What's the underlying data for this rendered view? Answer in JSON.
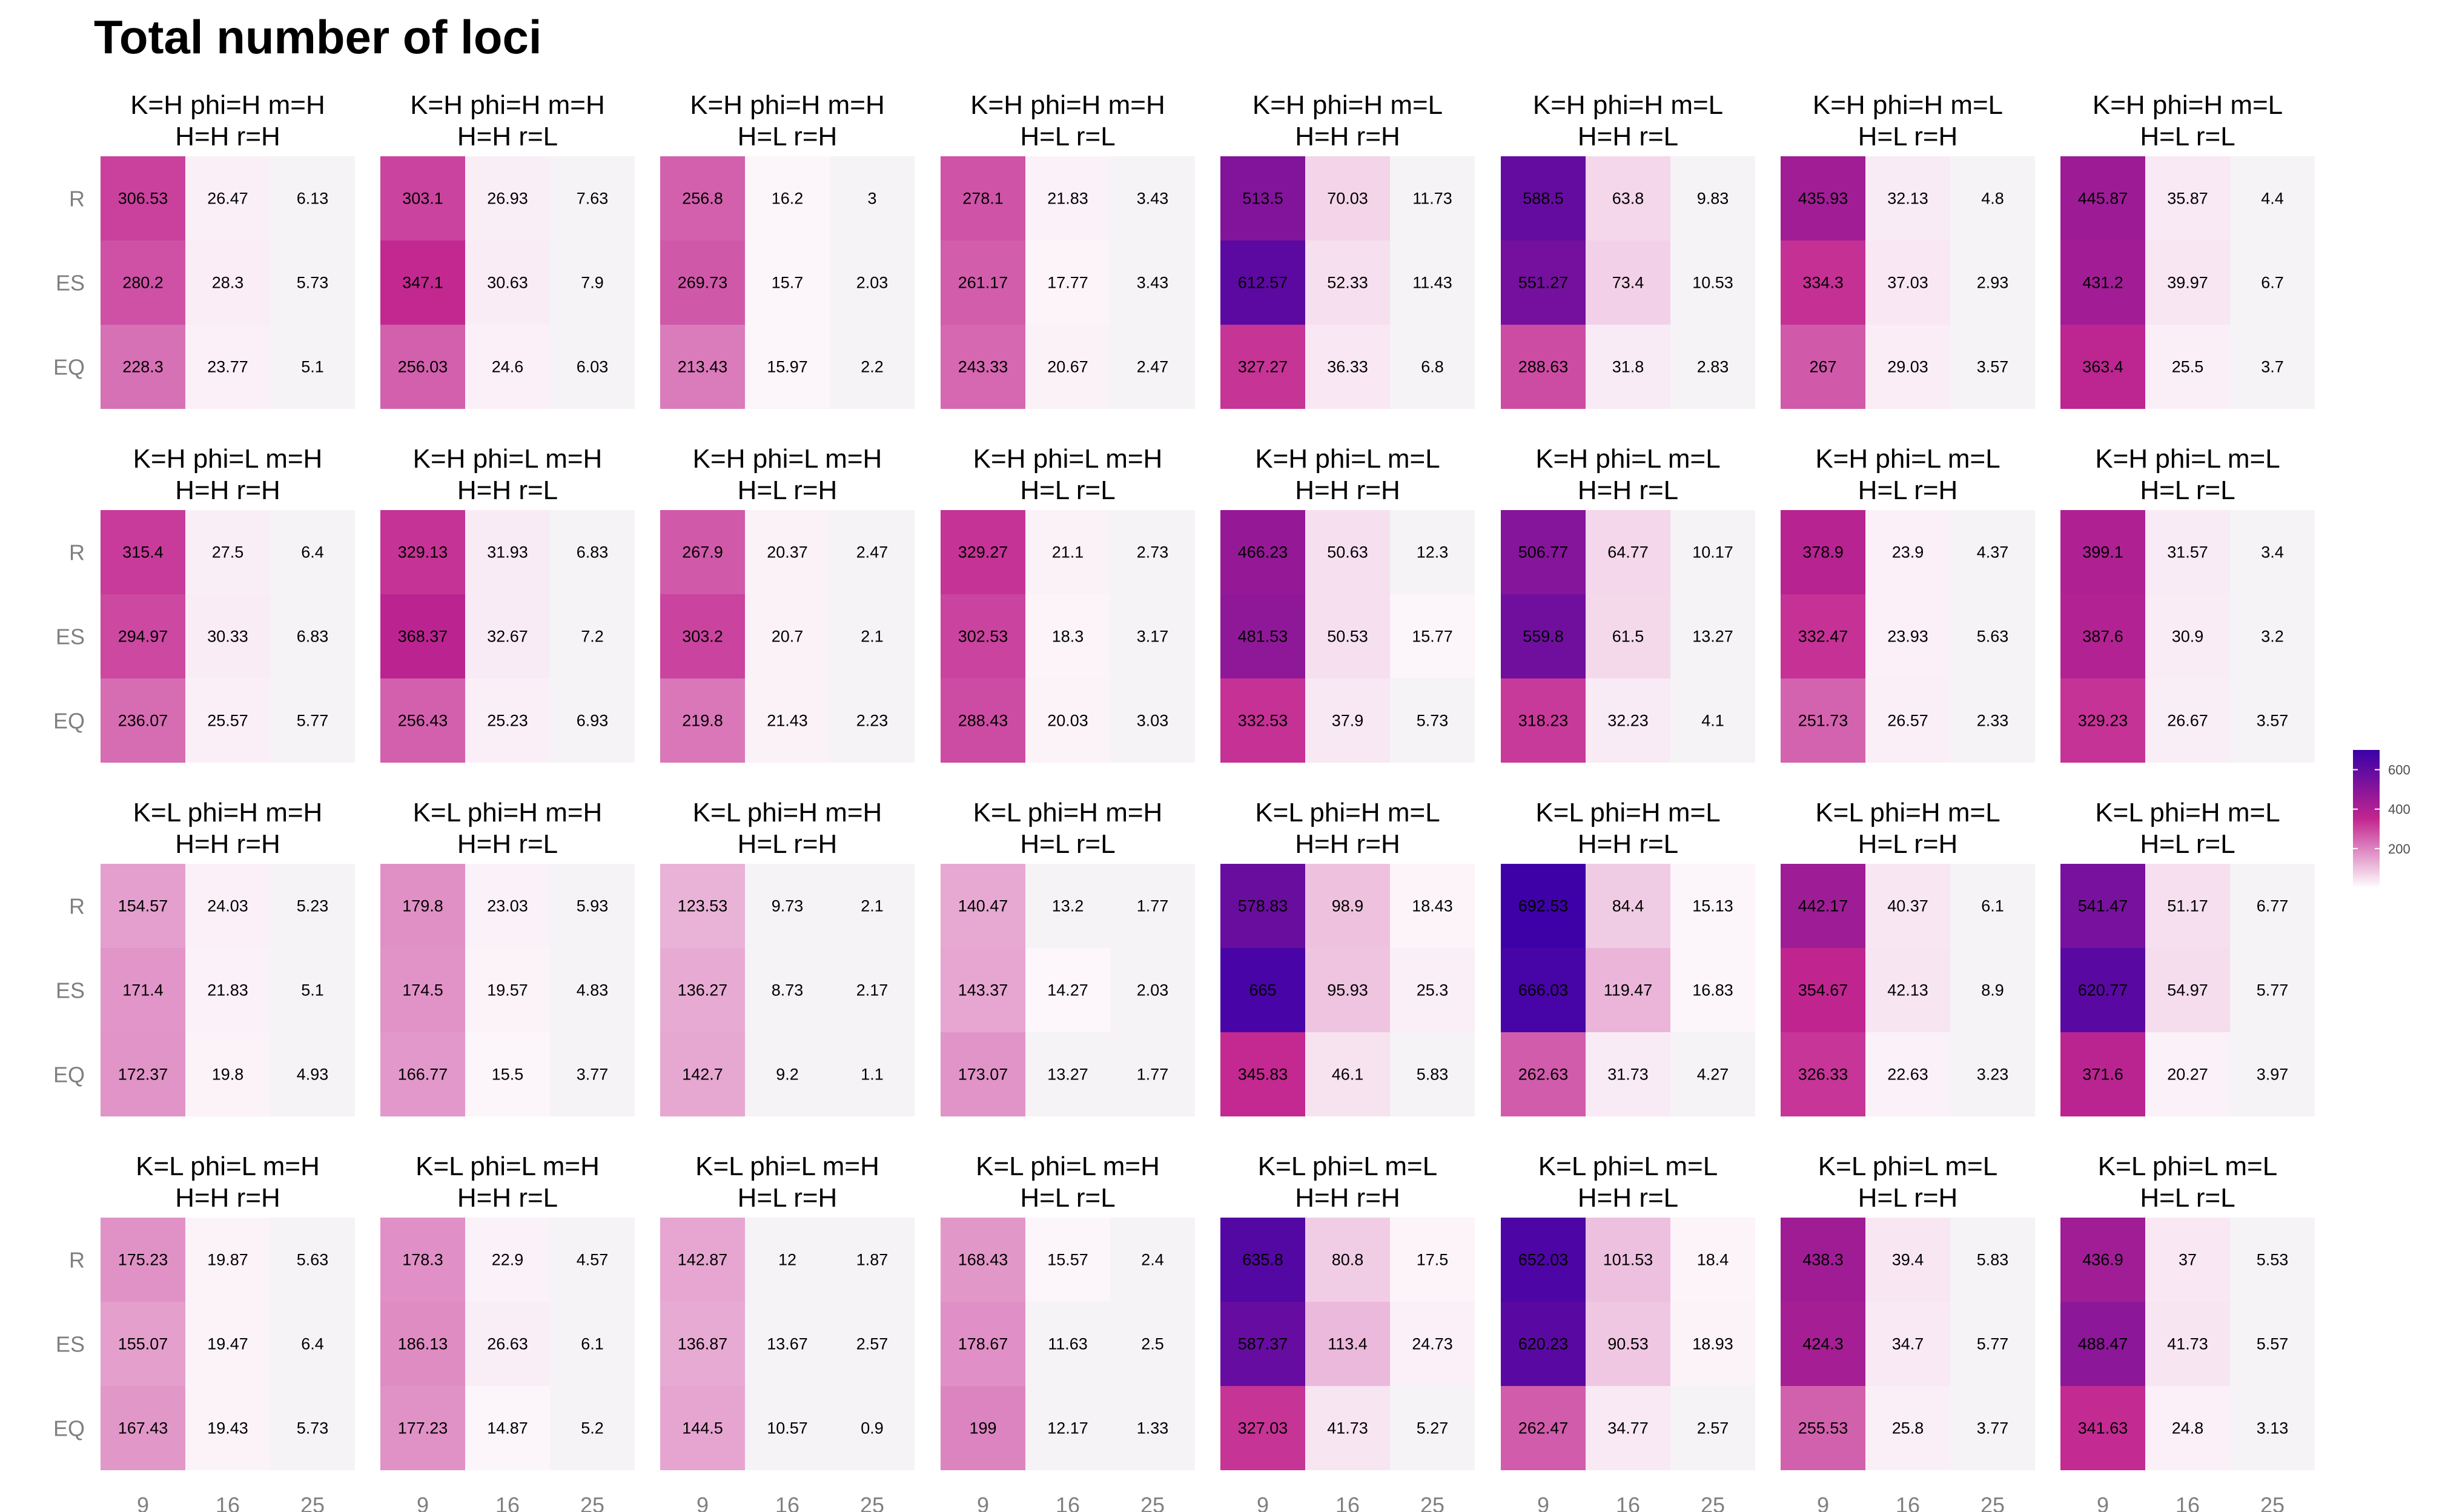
{
  "chart_data": {
    "type": "heatmap",
    "title": "Total number of loci",
    "x_categories": [
      "9",
      "16",
      "25"
    ],
    "y_categories": [
      "R",
      "ES",
      "EQ"
    ],
    "color_scale": {
      "low": "#ffffff",
      "mid": "#c2268f",
      "high": "#3a00a8",
      "min": 0,
      "max": 700
    },
    "legend": {
      "position": "right",
      "ticks": [
        200,
        400,
        600
      ]
    },
    "grid": false,
    "panels": [
      {
        "title_line1": "K=H phi=H m=H",
        "title_line2": "H=H r=H",
        "values": [
          [
            306.53,
            26.47,
            6.13
          ],
          [
            280.2,
            28.3,
            5.73
          ],
          [
            228.3,
            23.77,
            5.1
          ]
        ]
      },
      {
        "title_line1": "K=H phi=H m=H",
        "title_line2": "H=H r=L",
        "values": [
          [
            303.1,
            26.93,
            7.63
          ],
          [
            347.1,
            30.63,
            7.9
          ],
          [
            256.03,
            24.6,
            6.03
          ]
        ]
      },
      {
        "title_line1": "K=H phi=H m=H",
        "title_line2": "H=L r=H",
        "values": [
          [
            256.8,
            16.2,
            3
          ],
          [
            269.73,
            15.7,
            2.03
          ],
          [
            213.43,
            15.97,
            2.2
          ]
        ]
      },
      {
        "title_line1": "K=H phi=H m=H",
        "title_line2": "H=L r=L",
        "values": [
          [
            278.1,
            21.83,
            3.43
          ],
          [
            261.17,
            17.77,
            3.43
          ],
          [
            243.33,
            20.67,
            2.47
          ]
        ]
      },
      {
        "title_line1": "K=H phi=H m=L",
        "title_line2": "H=H r=H",
        "values": [
          [
            513.5,
            70.03,
            11.73
          ],
          [
            612.57,
            52.33,
            11.43
          ],
          [
            327.27,
            36.33,
            6.8
          ]
        ]
      },
      {
        "title_line1": "K=H phi=H m=L",
        "title_line2": "H=H r=L",
        "values": [
          [
            588.5,
            63.8,
            9.83
          ],
          [
            551.27,
            73.4,
            10.53
          ],
          [
            288.63,
            31.8,
            2.83
          ]
        ]
      },
      {
        "title_line1": "K=H phi=H m=L",
        "title_line2": "H=L r=H",
        "values": [
          [
            435.93,
            32.13,
            4.8
          ],
          [
            334.3,
            37.03,
            2.93
          ],
          [
            267,
            29.03,
            3.57
          ]
        ]
      },
      {
        "title_line1": "K=H phi=H m=L",
        "title_line2": "H=L r=L",
        "values": [
          [
            445.87,
            35.87,
            4.4
          ],
          [
            431.2,
            39.97,
            6.7
          ],
          [
            363.4,
            25.5,
            3.7
          ]
        ]
      },
      {
        "title_line1": "K=H phi=L m=H",
        "title_line2": "H=H r=H",
        "values": [
          [
            315.4,
            27.5,
            6.4
          ],
          [
            294.97,
            30.33,
            6.83
          ],
          [
            236.07,
            25.57,
            5.77
          ]
        ]
      },
      {
        "title_line1": "K=H phi=L m=H",
        "title_line2": "H=H r=L",
        "values": [
          [
            329.13,
            31.93,
            6.83
          ],
          [
            368.37,
            32.67,
            7.2
          ],
          [
            256.43,
            25.23,
            6.93
          ]
        ]
      },
      {
        "title_line1": "K=H phi=L m=H",
        "title_line2": "H=L r=H",
        "values": [
          [
            267.9,
            20.37,
            2.47
          ],
          [
            303.2,
            20.7,
            2.1
          ],
          [
            219.8,
            21.43,
            2.23
          ]
        ]
      },
      {
        "title_line1": "K=H phi=L m=H",
        "title_line2": "H=L r=L",
        "values": [
          [
            329.27,
            21.1,
            2.73
          ],
          [
            302.53,
            18.3,
            3.17
          ],
          [
            288.43,
            20.03,
            3.03
          ]
        ]
      },
      {
        "title_line1": "K=H phi=L m=L",
        "title_line2": "H=H r=H",
        "values": [
          [
            466.23,
            50.63,
            12.3
          ],
          [
            481.53,
            50.53,
            15.77
          ],
          [
            332.53,
            37.9,
            5.73
          ]
        ]
      },
      {
        "title_line1": "K=H phi=L m=L",
        "title_line2": "H=H r=L",
        "values": [
          [
            506.77,
            64.77,
            10.17
          ],
          [
            559.8,
            61.5,
            13.27
          ],
          [
            318.23,
            32.23,
            4.1
          ]
        ]
      },
      {
        "title_line1": "K=H phi=L m=L",
        "title_line2": "H=L r=H",
        "values": [
          [
            378.9,
            23.9,
            4.37
          ],
          [
            332.47,
            23.93,
            5.63
          ],
          [
            251.73,
            26.57,
            2.33
          ]
        ]
      },
      {
        "title_line1": "K=H phi=L m=L",
        "title_line2": "H=L r=L",
        "values": [
          [
            399.1,
            31.57,
            3.4
          ],
          [
            387.6,
            30.9,
            3.2
          ],
          [
            329.23,
            26.67,
            3.57
          ]
        ]
      },
      {
        "title_line1": "K=L phi=H m=H",
        "title_line2": "H=H r=H",
        "values": [
          [
            154.57,
            24.03,
            5.23
          ],
          [
            171.4,
            21.83,
            5.1
          ],
          [
            172.37,
            19.8,
            4.93
          ]
        ]
      },
      {
        "title_line1": "K=L phi=H m=H",
        "title_line2": "H=H r=L",
        "values": [
          [
            179.8,
            23.03,
            5.93
          ],
          [
            174.5,
            19.57,
            4.83
          ],
          [
            166.77,
            15.5,
            3.77
          ]
        ]
      },
      {
        "title_line1": "K=L phi=H m=H",
        "title_line2": "H=L r=H",
        "values": [
          [
            123.53,
            9.73,
            2.1
          ],
          [
            136.27,
            8.73,
            2.17
          ],
          [
            142.7,
            9.2,
            1.1
          ]
        ]
      },
      {
        "title_line1": "K=L phi=H m=H",
        "title_line2": "H=L r=L",
        "values": [
          [
            140.47,
            13.2,
            1.77
          ],
          [
            143.37,
            14.27,
            2.03
          ],
          [
            173.07,
            13.27,
            1.77
          ]
        ]
      },
      {
        "title_line1": "K=L phi=H m=L",
        "title_line2": "H=H r=H",
        "values": [
          [
            578.83,
            98.9,
            18.43
          ],
          [
            665,
            95.93,
            25.3
          ],
          [
            345.83,
            46.1,
            5.83
          ]
        ]
      },
      {
        "title_line1": "K=L phi=H m=L",
        "title_line2": "H=H r=L",
        "values": [
          [
            692.53,
            84.4,
            15.13
          ],
          [
            666.03,
            119.47,
            16.83
          ],
          [
            262.63,
            31.73,
            4.27
          ]
        ]
      },
      {
        "title_line1": "K=L phi=H m=L",
        "title_line2": "H=L r=H",
        "values": [
          [
            442.17,
            40.37,
            6.1
          ],
          [
            354.67,
            42.13,
            8.9
          ],
          [
            326.33,
            22.63,
            3.23
          ]
        ]
      },
      {
        "title_line1": "K=L phi=H m=L",
        "title_line2": "H=L r=L",
        "values": [
          [
            541.47,
            51.17,
            6.77
          ],
          [
            620.77,
            54.97,
            5.77
          ],
          [
            371.6,
            20.27,
            3.97
          ]
        ]
      },
      {
        "title_line1": "K=L phi=L m=H",
        "title_line2": "H=H r=H",
        "values": [
          [
            175.23,
            19.87,
            5.63
          ],
          [
            155.07,
            19.47,
            6.4
          ],
          [
            167.43,
            19.43,
            5.73
          ]
        ]
      },
      {
        "title_line1": "K=L phi=L m=H",
        "title_line2": "H=H r=L",
        "values": [
          [
            178.3,
            22.9,
            4.57
          ],
          [
            186.13,
            26.63,
            6.1
          ],
          [
            177.23,
            14.87,
            5.2
          ]
        ]
      },
      {
        "title_line1": "K=L phi=L m=H",
        "title_line2": "H=L r=H",
        "values": [
          [
            142.87,
            12,
            1.87
          ],
          [
            136.87,
            13.67,
            2.57
          ],
          [
            144.5,
            10.57,
            0.9
          ]
        ]
      },
      {
        "title_line1": "K=L phi=L m=H",
        "title_line2": "H=L r=L",
        "values": [
          [
            168.43,
            15.57,
            2.4
          ],
          [
            178.67,
            11.63,
            2.5
          ],
          [
            199,
            12.17,
            1.33
          ]
        ]
      },
      {
        "title_line1": "K=L phi=L m=L",
        "title_line2": "H=H r=H",
        "values": [
          [
            635.8,
            80.8,
            17.5
          ],
          [
            587.37,
            113.4,
            24.73
          ],
          [
            327.03,
            41.73,
            5.27
          ]
        ]
      },
      {
        "title_line1": "K=L phi=L m=L",
        "title_line2": "H=H r=L",
        "values": [
          [
            652.03,
            101.53,
            18.4
          ],
          [
            620.23,
            90.53,
            18.93
          ],
          [
            262.47,
            34.77,
            2.57
          ]
        ]
      },
      {
        "title_line1": "K=L phi=L m=L",
        "title_line2": "H=L r=H",
        "values": [
          [
            438.3,
            39.4,
            5.83
          ],
          [
            424.3,
            34.7,
            5.77
          ],
          [
            255.53,
            25.8,
            3.77
          ]
        ]
      },
      {
        "title_line1": "K=L phi=L m=L",
        "title_line2": "H=L r=L",
        "values": [
          [
            436.9,
            37,
            5.53
          ],
          [
            488.47,
            41.73,
            5.57
          ],
          [
            341.63,
            24.8,
            3.13
          ]
        ]
      }
    ]
  }
}
